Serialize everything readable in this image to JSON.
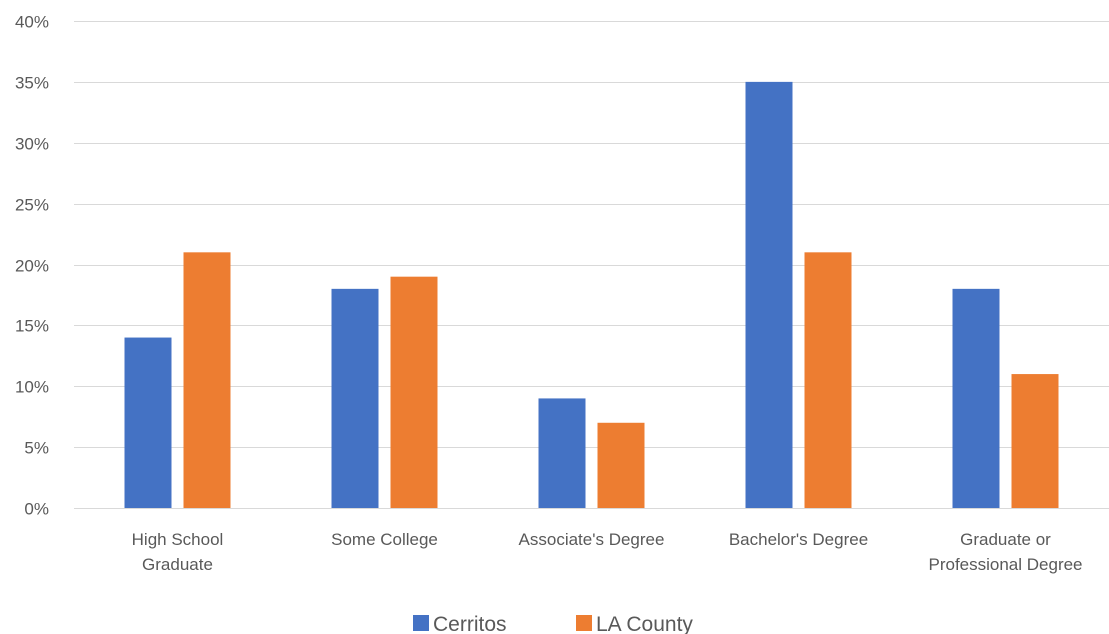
{
  "chart_data": {
    "type": "bar",
    "categories": [
      [
        "High School",
        "Graduate"
      ],
      [
        "Some College"
      ],
      [
        "Associate's Degree"
      ],
      [
        "Bachelor's Degree"
      ],
      [
        "Graduate or",
        "Professional Degree"
      ]
    ],
    "series": [
      {
        "name": "Cerritos",
        "color": "#4472c4",
        "values": [
          14,
          18,
          9,
          35,
          18
        ]
      },
      {
        "name": "LA County",
        "color": "#ed7d31",
        "values": [
          21,
          19,
          7,
          21,
          11
        ]
      }
    ],
    "ylim": [
      0,
      40
    ],
    "yticks": [
      0,
      5,
      10,
      15,
      20,
      25,
      30,
      35,
      40
    ],
    "ytick_labels": [
      "0%",
      "5%",
      "10%",
      "15%",
      "20%",
      "25%",
      "30%",
      "35%",
      "40%"
    ],
    "grid": true,
    "legend": "bottom-center",
    "title": "",
    "xlabel": "",
    "ylabel": ""
  }
}
